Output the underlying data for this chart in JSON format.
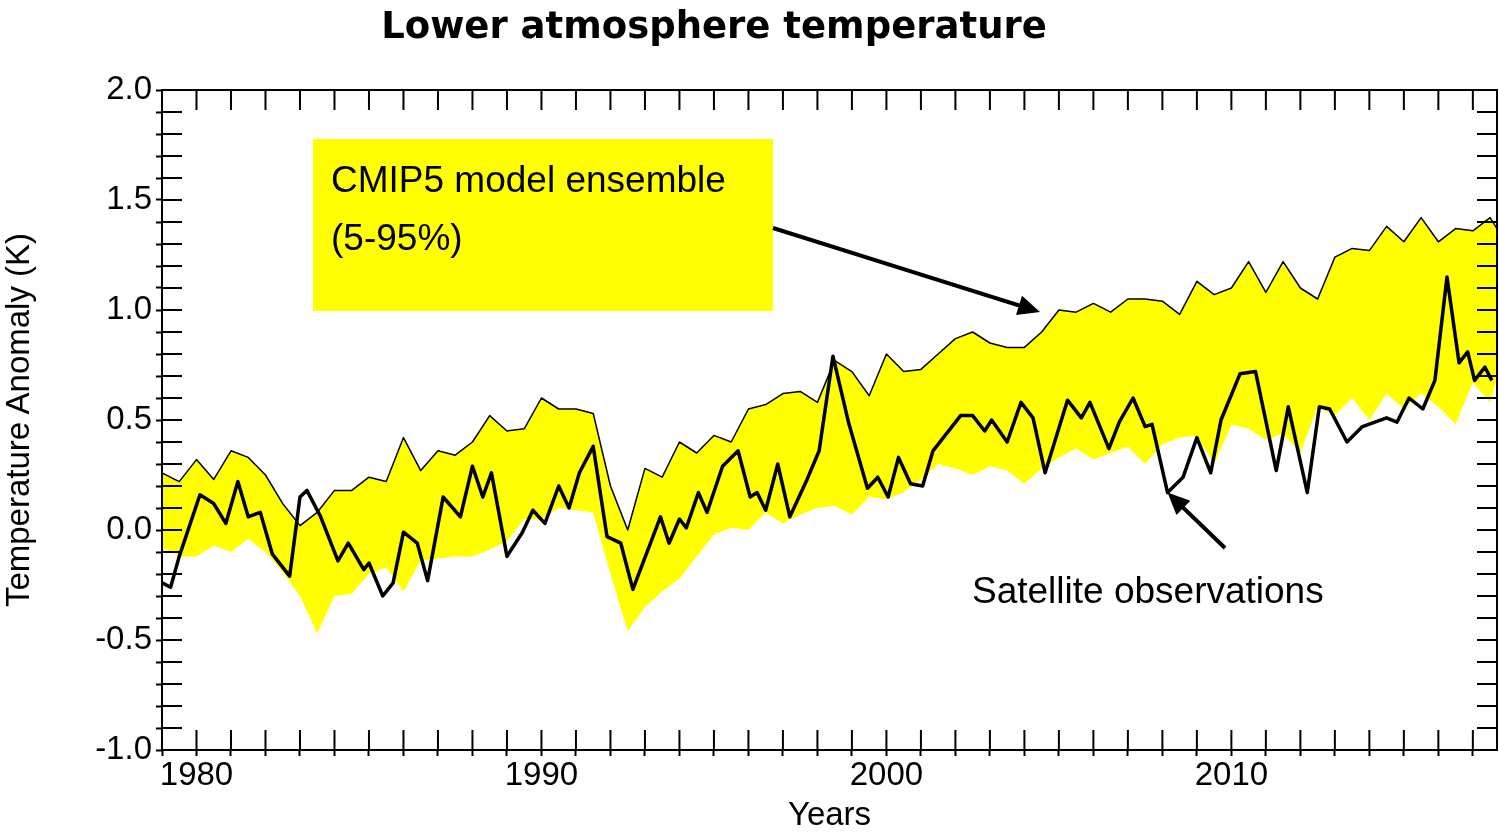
{
  "chart_data": {
    "type": "line",
    "title": "Lower atmosphere temperature",
    "xlabel": "Years",
    "ylabel": "Temperature Anomaly (K)",
    "xlim": [
      1979,
      2017.7
    ],
    "ylim": [
      -1,
      2
    ],
    "xticks": [
      {
        "value": 1979,
        "label": null
      },
      1980,
      {
        "value": 1981,
        "label": null
      },
      {
        "value": 1982,
        "label": null
      },
      {
        "value": 1983,
        "label": null
      },
      {
        "value": 1984,
        "label": null
      },
      {
        "value": 1985,
        "label": null
      },
      {
        "value": 1986,
        "label": null
      },
      {
        "value": 1987,
        "label": null
      },
      {
        "value": 1988,
        "label": null
      },
      {
        "value": 1989,
        "label": null
      },
      1990,
      {
        "value": 1991,
        "label": null
      },
      {
        "value": 1992,
        "label": null
      },
      {
        "value": 1993,
        "label": null
      },
      {
        "value": 1994,
        "label": null
      },
      {
        "value": 1995,
        "label": null
      },
      {
        "value": 1996,
        "label": null
      },
      {
        "value": 1997,
        "label": null
      },
      {
        "value": 1998,
        "label": null
      },
      {
        "value": 1999,
        "label": null
      },
      2000,
      {
        "value": 2001,
        "label": null
      },
      {
        "value": 2002,
        "label": null
      },
      {
        "value": 2003,
        "label": null
      },
      {
        "value": 2004,
        "label": null
      },
      {
        "value": 2005,
        "label": null
      },
      {
        "value": 2006,
        "label": null
      },
      {
        "value": 2007,
        "label": null
      },
      {
        "value": 2008,
        "label": null
      },
      {
        "value": 2009,
        "label": null
      },
      2010,
      {
        "value": 2011,
        "label": null
      },
      {
        "value": 2012,
        "label": null
      },
      {
        "value": 2013,
        "label": null
      },
      {
        "value": 2014,
        "label": null
      },
      {
        "value": 2015,
        "label": null
      },
      {
        "value": 2016,
        "label": null
      },
      {
        "value": 2017,
        "label": null
      }
    ],
    "yticks": [
      {
        "value": -1,
        "label": "-1.0"
      },
      {
        "value": -0.9,
        "label": null
      },
      {
        "value": -0.8,
        "label": null
      },
      {
        "value": -0.7,
        "label": null
      },
      {
        "value": -0.6,
        "label": null
      },
      {
        "value": -0.5,
        "label": "-0.5"
      },
      {
        "value": -0.4,
        "label": null
      },
      {
        "value": -0.3,
        "label": null
      },
      {
        "value": -0.2,
        "label": null
      },
      {
        "value": -0.1,
        "label": null
      },
      {
        "value": 0,
        "label": "0.0"
      },
      {
        "value": 0.1,
        "label": null
      },
      {
        "value": 0.2,
        "label": null
      },
      {
        "value": 0.3,
        "label": null
      },
      {
        "value": 0.4,
        "label": null
      },
      {
        "value": 0.5,
        "label": "0.5"
      },
      {
        "value": 0.6,
        "label": null
      },
      {
        "value": 0.7,
        "label": null
      },
      {
        "value": 0.8,
        "label": null
      },
      {
        "value": 0.9,
        "label": null
      },
      {
        "value": 1,
        "label": "1.0"
      },
      {
        "value": 1.1,
        "label": null
      },
      {
        "value": 1.2,
        "label": null
      },
      {
        "value": 1.3,
        "label": null
      },
      {
        "value": 1.4,
        "label": null
      },
      {
        "value": 1.5,
        "label": "1.5"
      },
      {
        "value": 1.6,
        "label": null
      },
      {
        "value": 1.7,
        "label": null
      },
      {
        "value": 1.8,
        "label": null
      },
      {
        "value": 1.9,
        "label": null
      },
      {
        "value": 2,
        "label": "2.0"
      }
    ],
    "series": [
      {
        "type": "line",
        "color": "#000000",
        "x": [
          1979,
          1979.5,
          1980,
          1980.5,
          1981,
          1981.5,
          1982,
          1982.5,
          1983,
          1983.5,
          1984,
          1984.5,
          1985,
          1985.5,
          1986,
          1986.5,
          1987,
          1987.5,
          1988,
          1988.5,
          1989,
          1989.5,
          1990,
          1990.5,
          1991,
          1991.5,
          1992,
          1992.5,
          1993,
          1993.5,
          1994,
          1994.5,
          1995,
          1995.5,
          1996,
          1996.5,
          1997,
          1997.5,
          1998,
          1998.5,
          1999,
          1999.5,
          2000,
          2000.5,
          2001,
          2001.5,
          2002,
          2002.5,
          2003,
          2003.5,
          2004,
          2004.5,
          2005,
          2005.5,
          2006,
          2006.5,
          2007,
          2007.5,
          2008,
          2008.5,
          2009,
          2009.5,
          2010,
          2010.5,
          2011,
          2011.5,
          2012,
          2012.5,
          2013,
          2013.5,
          2014,
          2014.5,
          2015,
          2015.5,
          2016,
          2016.5,
          2017,
          2017.5,
          2017.7
        ],
        "values": [
          0.26,
          0.22,
          0.32,
          0.23,
          0.36,
          0.33,
          0.25,
          0.12,
          0.02,
          0.08,
          0.18,
          0.18,
          0.24,
          0.22,
          0.42,
          0.27,
          0.36,
          0.34,
          0.4,
          0.52,
          0.45,
          0.46,
          0.6,
          0.55,
          0.55,
          0.53,
          0.2,
          0,
          0.28,
          0.24,
          0.4,
          0.35,
          0.43,
          0.4,
          0.55,
          0.57,
          0.62,
          0.63,
          0.58,
          0.77,
          0.72,
          0.61,
          0.8,
          0.72,
          0.73,
          0.8,
          0.87,
          0.9,
          0.85,
          0.83,
          0.83,
          0.9,
          1,
          0.99,
          1.03,
          0.99,
          1.05,
          1.05,
          1.04,
          0.98,
          1.13,
          1.07,
          1.1,
          1.22,
          1.08,
          1.22,
          1.1,
          1.05,
          1.24,
          1.28,
          1.27,
          1.38,
          1.31,
          1.42,
          1.31,
          1.37,
          1.36,
          1.42,
          1.37
        ],
        "upper": [
          0.26,
          0.22,
          0.32,
          0.23,
          0.36,
          0.33,
          0.25,
          0.12,
          0.02,
          0.08,
          0.18,
          0.18,
          0.24,
          0.22,
          0.42,
          0.27,
          0.36,
          0.34,
          0.4,
          0.52,
          0.45,
          0.46,
          0.6,
          0.55,
          0.55,
          0.53,
          0.2,
          0,
          0.28,
          0.24,
          0.4,
          0.35,
          0.43,
          0.4,
          0.55,
          0.57,
          0.62,
          0.63,
          0.58,
          0.77,
          0.72,
          0.61,
          0.8,
          0.72,
          0.73,
          0.8,
          0.87,
          0.9,
          0.85,
          0.83,
          0.83,
          0.9,
          1,
          0.99,
          1.03,
          0.99,
          1.05,
          1.05,
          1.04,
          0.98,
          1.13,
          1.07,
          1.1,
          1.22,
          1.08,
          1.22,
          1.1,
          1.05,
          1.24,
          1.28,
          1.27,
          1.38,
          1.31,
          1.42,
          1.31,
          1.37,
          1.36,
          1.42,
          1.37
        ],
        "lower": [
          -0.08,
          -0.12,
          -0.12,
          -0.07,
          -0.1,
          -0.04,
          -0.1,
          -0.19,
          -0.3,
          -0.47,
          -0.3,
          -0.29,
          -0.2,
          -0.17,
          -0.28,
          -0.14,
          -0.13,
          -0.12,
          -0.12,
          -0.09,
          -0.05,
          0.05,
          0.05,
          0.1,
          0.09,
          0.08,
          -0.2,
          -0.46,
          -0.35,
          -0.28,
          -0.22,
          -0.12,
          -0.02,
          0.01,
          0,
          0.08,
          0.03,
          0.07,
          0.1,
          0.11,
          0.07,
          0.15,
          0.14,
          0.17,
          0.23,
          0.3,
          0.28,
          0.25,
          0.29,
          0.27,
          0.21,
          0.28,
          0.33,
          0.37,
          0.32,
          0.35,
          0.38,
          0.3,
          0.39,
          0.42,
          0.43,
          0.3,
          0.48,
          0.46,
          0.41,
          0.44,
          0.35,
          0.56,
          0.52,
          0.6,
          0.5,
          0.62,
          0.55,
          0.62,
          0.56,
          0.48,
          0.67,
          0.58,
          0.69
        ]
      },
      {
        "type": "line",
        "color": "#000000",
        "x": [
          1979,
          1979.25,
          1979.5,
          1980.1,
          1980.5,
          1980.85,
          1981.2,
          1981.5,
          1981.85,
          1982.2,
          1982.7,
          1983,
          1983.2,
          1983.6,
          1984.1,
          1984.4,
          1984.85,
          1985,
          1985.4,
          1985.7,
          1986,
          1986.4,
          1986.7,
          1987.15,
          1987.65,
          1988,
          1988.3,
          1988.55,
          1989,
          1989.45,
          1989.75,
          1990.1,
          1990.5,
          1990.8,
          1991.1,
          1991.5,
          1991.9,
          1992.3,
          1992.65,
          1993.45,
          1993.7,
          1994,
          1994.2,
          1994.55,
          1994.8,
          1995.25,
          1995.7,
          1996.05,
          1996.25,
          1996.5,
          1996.85,
          1997.2,
          1997.7,
          1998.05,
          1998.45,
          1998.9,
          1999.45,
          1999.75,
          2000.05,
          2000.35,
          2000.7,
          2001.05,
          2001.35,
          2002.15,
          2002.5,
          2002.85,
          2003.05,
          2003.5,
          2003.9,
          2004.25,
          2004.6,
          2005.25,
          2005.65,
          2005.9,
          2006.45,
          2006.75,
          2007.15,
          2007.5,
          2007.7,
          2008.15,
          2008.6,
          2009,
          2009.4,
          2009.7,
          2010.25,
          2010.7,
          2011.3,
          2011.65,
          2012.2,
          2012.55,
          2012.85,
          2013.35,
          2013.8,
          2014.5,
          2014.8,
          2015.15,
          2015.55,
          2015.9,
          2016.25,
          2016.6,
          2016.85,
          2017.05,
          2017.35,
          2017.55
        ],
        "values": [
          -0.24,
          -0.26,
          -0.12,
          0.16,
          0.12,
          0.03,
          0.22,
          0.06,
          0.08,
          -0.11,
          -0.21,
          0.15,
          0.18,
          0.06,
          -0.14,
          -0.06,
          -0.18,
          -0.15,
          -0.3,
          -0.24,
          -0.01,
          -0.06,
          -0.23,
          0.15,
          0.06,
          0.29,
          0.15,
          0.26,
          -0.12,
          -0.01,
          0.09,
          0.03,
          0.2,
          0.1,
          0.26,
          0.38,
          -0.03,
          -0.06,
          -0.27,
          0.06,
          -0.06,
          0.05,
          0.01,
          0.17,
          0.08,
          0.29,
          0.36,
          0.15,
          0.17,
          0.09,
          0.3,
          0.06,
          0.23,
          0.36,
          0.79,
          0.49,
          0.19,
          0.24,
          0.15,
          0.33,
          0.21,
          0.2,
          0.36,
          0.52,
          0.52,
          0.45,
          0.5,
          0.4,
          0.58,
          0.51,
          0.26,
          0.59,
          0.51,
          0.58,
          0.37,
          0.49,
          0.6,
          0.47,
          0.48,
          0.17,
          0.24,
          0.42,
          0.26,
          0.5,
          0.71,
          0.72,
          0.27,
          0.56,
          0.17,
          0.56,
          0.55,
          0.4,
          0.47,
          0.51,
          0.49,
          0.6,
          0.55,
          0.68,
          1.15,
          0.76,
          0.81,
          0.68,
          0.74,
          0.68
        ]
      }
    ],
    "annotations": [
      "CMIP5 model ensemble (5-95%)",
      {
        "text": "Satellite observations",
        "x": 2008.15,
        "y": 0.17
      }
    ]
  }
}
